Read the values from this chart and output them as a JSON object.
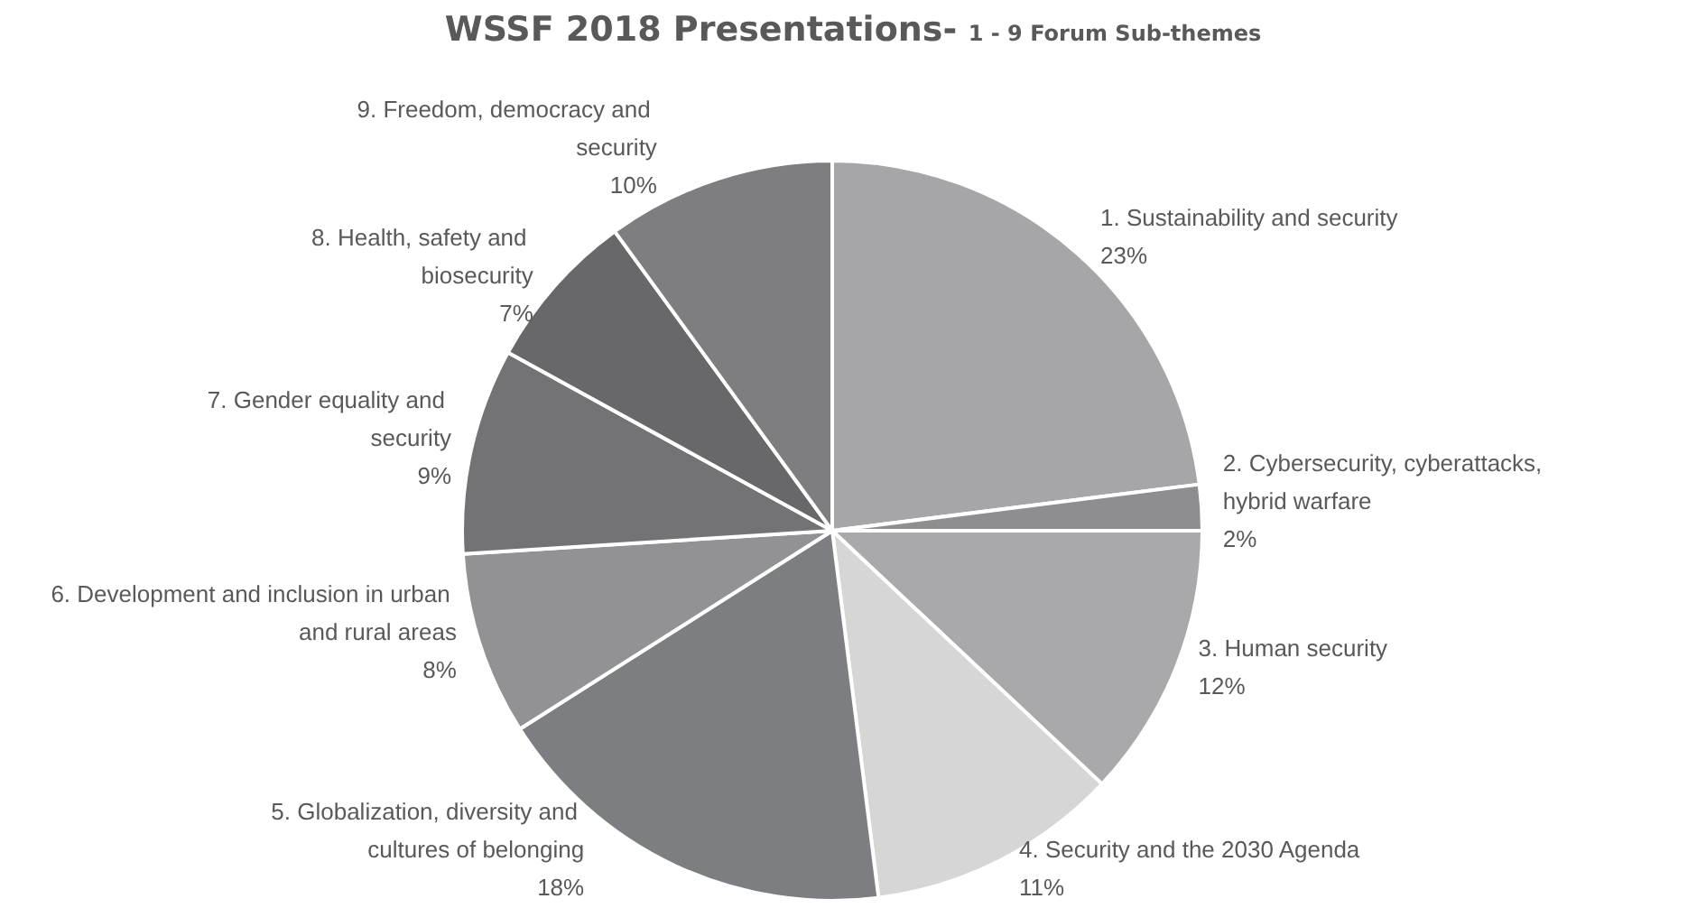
{
  "chart_data": {
    "type": "pie",
    "title": "WSSF 2018 Presentations-",
    "subtitle": "1 - 9 Forum Sub-themes",
    "categories": [
      "1. Sustainability and security",
      "2. Cybersecurity, cyberattacks, hybrid warfare",
      "3. Human security",
      "4. Security and the 2030 Agenda",
      "5. Globalization, diversity and cultures of belonging",
      "6. Development and inclusion in urban and rural areas",
      "7. Gender equality and security",
      "8. Health, safety and biosecurity",
      "9. Freedom, democracy and security"
    ],
    "values": [
      23,
      2,
      12,
      11,
      18,
      8,
      9,
      7,
      10
    ],
    "value_labels": [
      "23%",
      "2%",
      "12%",
      "11%",
      "18%",
      "8%",
      "9%",
      "7%",
      "10%"
    ],
    "colors": [
      "#a6a6a8",
      "#8e8e90",
      "#a9a9ab",
      "#d6d6d6",
      "#7d7e81",
      "#929294",
      "#737375",
      "#68686a",
      "#7e7e80"
    ],
    "legend": false
  }
}
